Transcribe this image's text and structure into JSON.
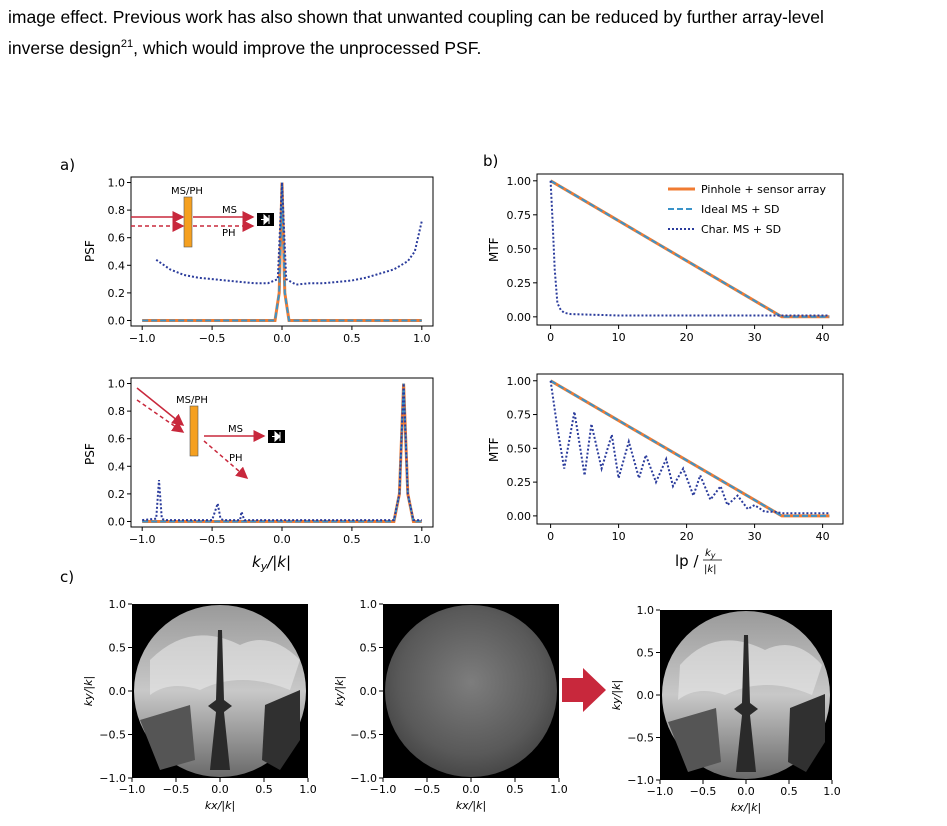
{
  "text": {
    "line1": "image effect. Previous work has also shown that unwanted coupling can be reduced by further array-level",
    "line2_pre": "inverse design",
    "line2_sup": "21",
    "line2_post": ", which would improve the unprocessed PSF."
  },
  "figure": {
    "panel_a_label": "a)",
    "panel_b_label": "b)",
    "panel_c_label": "c)",
    "psf_ylabel": "PSF",
    "mtf_ylabel": "MTF",
    "a_xlabel": "ky/|k|",
    "b_xlabel": "lp / ky/|k|",
    "c_xlabel": "kx/|k|",
    "c_ylabel": "ky/|k|",
    "inset_top": {
      "ms_ph": "MS/PH",
      "ms": "MS",
      "ph": "PH"
    },
    "inset_bottom": {
      "ms_ph": "MS/PH",
      "ms": "MS",
      "ph": "PH"
    },
    "legend": [
      "Pinhole + sensor array",
      "Ideal MS + SD",
      "Char. MS + SD"
    ],
    "colors": {
      "pinhole": "#f07b32",
      "ideal": "#3a93c9",
      "char": "#2b3c9c",
      "arrow": "#c8283c",
      "element": "#f5a020"
    }
  },
  "chart_data": [
    {
      "type": "line",
      "panel": "a-top",
      "ylabel": "PSF",
      "xlim": [
        -1.0,
        1.0
      ],
      "ylim": [
        0,
        1.0
      ],
      "xticks": [
        "−1.0",
        "−0.5",
        "0.0",
        "0.5",
        "1.0"
      ],
      "yticks": [
        "0.0",
        "0.2",
        "0.4",
        "0.6",
        "0.8",
        "1.0"
      ],
      "series": [
        {
          "name": "Pinhole + sensor array",
          "x": [
            -1.0,
            -0.05,
            -0.02,
            0.0,
            0.02,
            0.05,
            1.0
          ],
          "y": [
            0,
            0,
            0.2,
            1.0,
            0.2,
            0,
            0
          ]
        },
        {
          "name": "Ideal MS + SD",
          "x": [
            -1.0,
            -0.05,
            -0.02,
            0.0,
            0.02,
            0.05,
            1.0
          ],
          "y": [
            0,
            0,
            0.2,
            1.0,
            0.2,
            0,
            0
          ]
        },
        {
          "name": "Char. MS + SD",
          "x": [
            -0.9,
            -0.8,
            -0.7,
            -0.6,
            -0.5,
            -0.4,
            -0.3,
            -0.2,
            -0.1,
            -0.03,
            0.0,
            0.03,
            0.1,
            0.2,
            0.3,
            0.4,
            0.5,
            0.6,
            0.7,
            0.8,
            0.9,
            0.95,
            1.0
          ],
          "y": [
            0.44,
            0.37,
            0.33,
            0.31,
            0.3,
            0.29,
            0.28,
            0.27,
            0.27,
            0.3,
            1.0,
            0.3,
            0.26,
            0.27,
            0.27,
            0.28,
            0.29,
            0.31,
            0.34,
            0.37,
            0.43,
            0.5,
            0.72
          ]
        }
      ]
    },
    {
      "type": "line",
      "panel": "a-bottom",
      "ylabel": "PSF",
      "xlabel": "ky/|k|",
      "xlim": [
        -1.0,
        1.0
      ],
      "ylim": [
        0,
        1.0
      ],
      "xticks": [
        "−1.0",
        "−0.5",
        "0.0",
        "0.5",
        "1.0"
      ],
      "yticks": [
        "0.0",
        "0.2",
        "0.4",
        "0.6",
        "0.8",
        "1.0"
      ],
      "series": [
        {
          "name": "Pinhole + sensor array",
          "x": [
            -1.0,
            0.8,
            0.84,
            0.87,
            0.9,
            0.94,
            1.0
          ],
          "y": [
            0,
            0,
            0.2,
            1.0,
            0.2,
            0,
            0
          ]
        },
        {
          "name": "Ideal MS + SD",
          "x": [
            -1.0,
            0.8,
            0.84,
            0.87,
            0.9,
            0.94,
            1.0
          ],
          "y": [
            0,
            0,
            0.2,
            1.0,
            0.2,
            0,
            0
          ]
        },
        {
          "name": "Char. MS + SD",
          "x": [
            -1.0,
            -0.9,
            -0.88,
            -0.86,
            -0.84,
            -0.8,
            -0.5,
            -0.46,
            -0.44,
            -0.42,
            -0.3,
            -0.29,
            -0.27,
            0.8,
            0.84,
            0.87,
            0.9,
            0.94,
            1.0
          ],
          "y": [
            0.01,
            0.02,
            0.3,
            0.02,
            0.01,
            0.01,
            0.01,
            0.13,
            0.02,
            0.01,
            0.01,
            0.07,
            0.01,
            0.01,
            0.2,
            1.0,
            0.2,
            0.01,
            0.01
          ]
        }
      ]
    },
    {
      "type": "line",
      "panel": "b-top",
      "ylabel": "MTF",
      "xlim": [
        0,
        42
      ],
      "ylim": [
        0,
        1.0
      ],
      "xticks": [
        "0",
        "10",
        "20",
        "30",
        "40"
      ],
      "yticks": [
        "0.00",
        "0.25",
        "0.50",
        "0.75",
        "1.00"
      ],
      "legend": [
        "Pinhole + sensor array",
        "Ideal MS + SD",
        "Char. MS + SD"
      ],
      "series": [
        {
          "name": "Pinhole + sensor array",
          "x": [
            0,
            34,
            41
          ],
          "y": [
            1.0,
            0,
            0
          ]
        },
        {
          "name": "Ideal MS + SD",
          "x": [
            0,
            34,
            41
          ],
          "y": [
            1.0,
            0,
            0
          ]
        },
        {
          "name": "Char. MS + SD",
          "x": [
            0,
            0.3,
            0.6,
            1.0,
            1.5,
            2.0,
            3.0,
            10,
            20,
            30,
            41
          ],
          "y": [
            1.0,
            0.7,
            0.35,
            0.1,
            0.05,
            0.03,
            0.02,
            0.01,
            0.01,
            0.01,
            0.01
          ]
        }
      ]
    },
    {
      "type": "line",
      "panel": "b-bottom",
      "ylabel": "MTF",
      "xlabel": "lp / ky/|k|",
      "xlim": [
        0,
        42
      ],
      "ylim": [
        0,
        1.0
      ],
      "xticks": [
        "0",
        "10",
        "20",
        "30",
        "40"
      ],
      "yticks": [
        "0.00",
        "0.25",
        "0.50",
        "0.75",
        "1.00"
      ],
      "series": [
        {
          "name": "Pinhole + sensor array",
          "x": [
            0,
            34,
            41
          ],
          "y": [
            1.0,
            0,
            0
          ]
        },
        {
          "name": "Ideal MS + SD",
          "x": [
            0,
            34,
            41
          ],
          "y": [
            1.0,
            0,
            0
          ]
        },
        {
          "name": "Char. MS + SD",
          "x": [
            0,
            1,
            2,
            3.5,
            5,
            6,
            7.5,
            9,
            10,
            11.5,
            13,
            14,
            15.5,
            17,
            18,
            19.5,
            21,
            22,
            23.5,
            25,
            26,
            27.5,
            29,
            30,
            31.5,
            33,
            34,
            41
          ],
          "y": [
            1.0,
            0.65,
            0.35,
            0.77,
            0.3,
            0.68,
            0.35,
            0.6,
            0.28,
            0.55,
            0.28,
            0.45,
            0.25,
            0.42,
            0.22,
            0.35,
            0.15,
            0.3,
            0.12,
            0.22,
            0.08,
            0.15,
            0.05,
            0.08,
            0.03,
            0.03,
            0.02,
            0.02
          ]
        }
      ]
    },
    {
      "type": "heatmap",
      "panel": "c",
      "images": 3,
      "xlabel": "kx/|k|",
      "ylabel": "ky/|k|",
      "xlim": [
        -1.0,
        1.0
      ],
      "ylim": [
        -1.0,
        1.0
      ],
      "xticks": [
        "−1.0",
        "−0.5",
        "0.0",
        "0.5",
        "1.0"
      ],
      "yticks": [
        "−1.0",
        "−0.5",
        "0.0",
        "0.5",
        "1.0"
      ]
    }
  ]
}
